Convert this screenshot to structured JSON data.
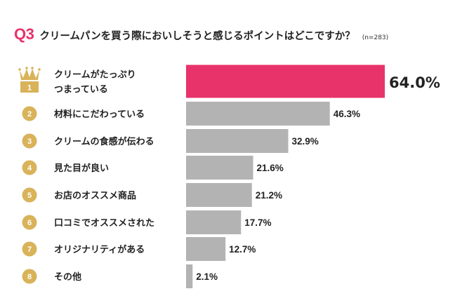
{
  "question": {
    "number": "Q3",
    "title": "クリームパンを買う際においしそうと感じるポイントはどこですか？",
    "sample": "(n=283)"
  },
  "colors": {
    "accent": "#e8326a",
    "bar": "#b3b3b3",
    "badge": "#d9b35a",
    "crown": "#d9b35a"
  },
  "chart_data": {
    "type": "bar",
    "orientation": "horizontal",
    "title": "クリームパンを買う際においしそうと感じるポイントはどこですか？",
    "categories": [
      "クリームがたっぷりつまっている",
      "材料にこだわっている",
      "クリームの食感が伝わる",
      "見た目が良い",
      "お店のオススメ商品",
      "口コミでオススメされた",
      "オリジナリティがある",
      "その他"
    ],
    "label_lines": [
      [
        "クリームがたっぷり",
        "つまっている"
      ],
      [
        "材料にこだわっている"
      ],
      [
        "クリームの食感が伝わる"
      ],
      [
        "見た目が良い"
      ],
      [
        "お店のオススメ商品"
      ],
      [
        "口コミでオススメされた"
      ],
      [
        "オリジナリティがある"
      ],
      [
        "その他"
      ]
    ],
    "ranks": [
      "1",
      "2",
      "3",
      "4",
      "5",
      "6",
      "7",
      "8"
    ],
    "values": [
      64.0,
      46.3,
      32.9,
      21.6,
      21.2,
      17.7,
      12.7,
      2.1
    ],
    "value_labels": [
      "64.0%",
      "46.3%",
      "32.9%",
      "21.6%",
      "21.2%",
      "17.7%",
      "12.7%",
      "2.1%"
    ],
    "xlim": [
      0,
      100
    ],
    "unit": "%",
    "highlight_index": 0,
    "grid": false,
    "legend": "none"
  }
}
